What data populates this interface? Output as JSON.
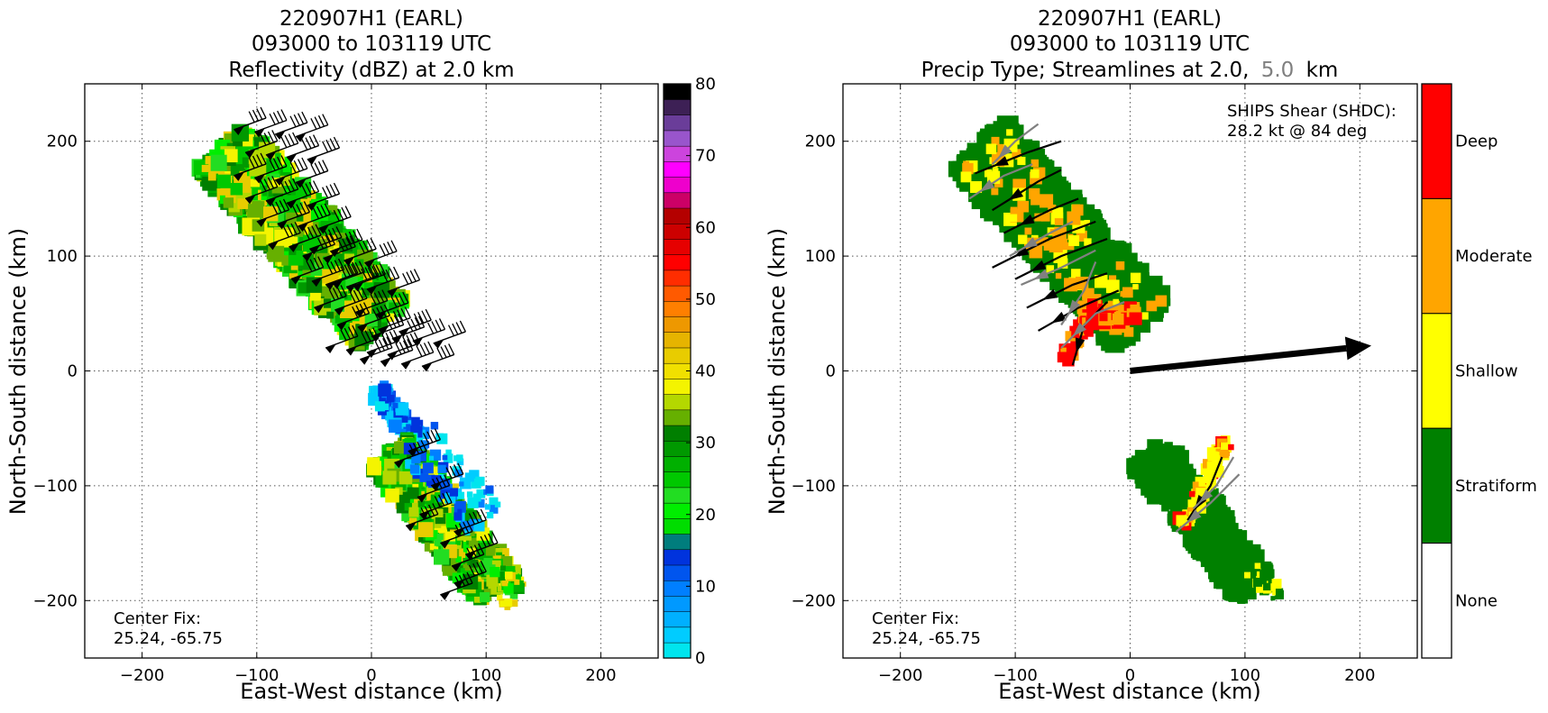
{
  "chart_data": [
    {
      "type": "heatmap",
      "title_lines": [
        "220907H1 (EARL)",
        "093000 to 103119 UTC",
        "Reflectivity (dBZ) at 2.0 km"
      ],
      "xlabel": "East-West distance (km)",
      "ylabel": "North-South distance (km)",
      "xlim": [
        -250,
        250
      ],
      "ylim": [
        -250,
        250
      ],
      "xticks": [
        -200,
        -100,
        0,
        100,
        200
      ],
      "yticks": [
        -200,
        -100,
        0,
        100,
        200
      ],
      "grid": true,
      "colorbar": {
        "ticks": [
          0,
          10,
          20,
          30,
          40,
          50,
          60,
          70,
          80
        ],
        "range": [
          0,
          80
        ],
        "levels": [
          "#00e5ee",
          "#00ccff",
          "#00b0ff",
          "#0099ff",
          "#007fff",
          "#0055ee",
          "#0033dd",
          "#007d7d",
          "#00dd00",
          "#00ee00",
          "#22dd22",
          "#00c800",
          "#00b000",
          "#009900",
          "#007f00",
          "#66b000",
          "#b4d800",
          "#f4f400",
          "#f0e000",
          "#e8cc00",
          "#e6b400",
          "#ee9800",
          "#ff7f00",
          "#ff5a00",
          "#ff2d00",
          "#ff0000",
          "#e60000",
          "#cc0000",
          "#b40000",
          "#cc0066",
          "#ee00cc",
          "#ff00ff",
          "#cc44dd",
          "#9955cc",
          "#6a3d99",
          "#3d2055",
          "#000000"
        ]
      },
      "annotation": [
        "Center Fix:",
        "25.24, -65.75"
      ],
      "echo_band_north": {
        "axis": [
          [
            -130,
            195
          ],
          [
            10,
            40
          ]
        ],
        "half_width_km": 30
      },
      "echo_band_south": {
        "axis": [
          [
            15,
            -70
          ],
          [
            110,
            -190
          ]
        ],
        "half_width_km": 22
      },
      "wind_barb_rows_km": [
        [
          -120,
          210
        ],
        [
          -110,
          190
        ],
        [
          -120,
          170
        ],
        [
          -110,
          150
        ],
        [
          -100,
          130
        ],
        [
          -90,
          110
        ],
        [
          -60,
          100
        ],
        [
          -70,
          80
        ],
        [
          -40,
          75
        ],
        [
          -50,
          55
        ],
        [
          -30,
          40
        ],
        [
          -40,
          20
        ],
        [
          0,
          30
        ],
        [
          -10,
          10
        ]
      ],
      "wind_barbs_south_km": [
        [
          20,
          -80
        ],
        [
          40,
          -110
        ],
        [
          30,
          -135
        ],
        [
          60,
          -150
        ],
        [
          70,
          -170
        ],
        [
          60,
          -195
        ]
      ]
    },
    {
      "type": "heatmap",
      "title_lines": [
        "220907H1 (EARL)",
        "093000 to 103119 UTC",
        "Precip Type; Streamlines at 2.0,",
        "5.0",
        "km"
      ],
      "xlabel": "East-West distance (km)",
      "ylabel": "North-South distance (km)",
      "xlim": [
        -250,
        250
      ],
      "ylim": [
        -250,
        250
      ],
      "xticks": [
        -200,
        -100,
        0,
        100,
        200
      ],
      "yticks": [
        -200,
        -100,
        0,
        100,
        200
      ],
      "grid": true,
      "categories": [
        "Deep",
        "Moderate",
        "Shallow",
        "Stratiform",
        "None"
      ],
      "category_colors": {
        "Deep": "#ff0000",
        "Moderate": "#ffa500",
        "Shallow": "#ffff00",
        "Stratiform": "#008000",
        "None": "#ffffff"
      },
      "streamline_colors": {
        "2.0": "#000000",
        "5.0": "#808080"
      },
      "shear": {
        "label_lines": [
          "SHIPS Shear (SHDC):",
          "28.2 kt @ 84 deg"
        ],
        "speed_kt": 28.2,
        "direction_deg": 84,
        "arrow_from": [
          0,
          0
        ],
        "arrow_to": [
          210,
          22
        ]
      },
      "annotation": [
        "Center Fix:",
        "25.24, -65.75"
      ]
    }
  ]
}
